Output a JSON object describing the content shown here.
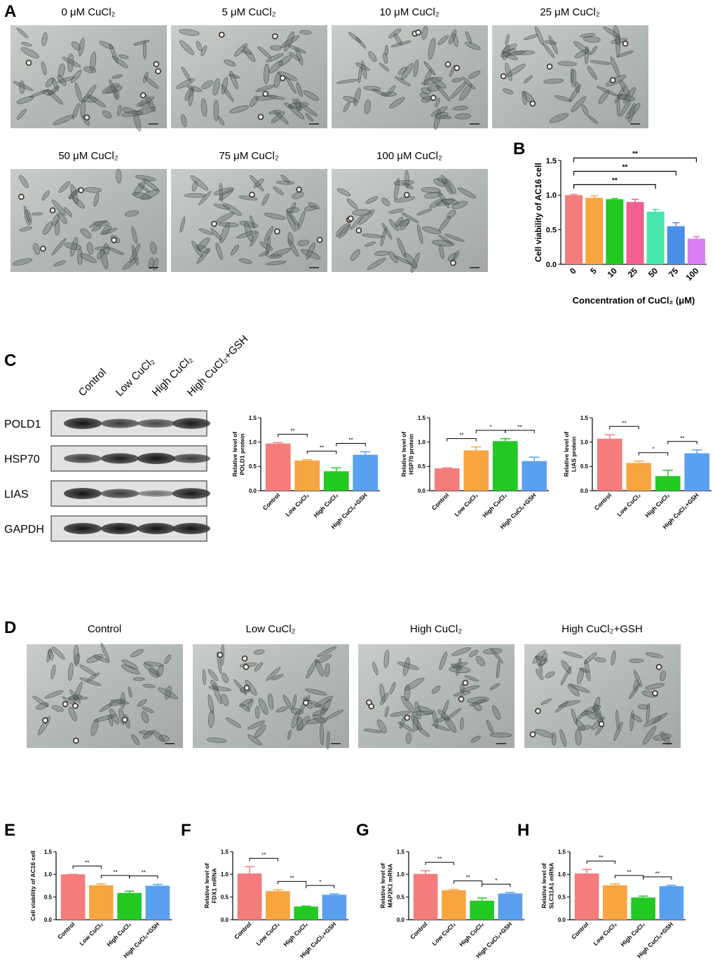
{
  "panels": [
    "A",
    "B",
    "C",
    "D",
    "E",
    "F",
    "G",
    "H"
  ],
  "figure_A": {
    "titles": [
      "0 μM CuCl₂",
      "5 μM CuCl₂",
      "10 μM CuCl₂",
      "25 μM CuCl₂",
      "50 μM CuCl₂",
      "75 μM CuCl₂",
      "100 μM CuCl₂"
    ]
  },
  "blot": {
    "lanes": [
      "Control",
      "Low CuCl₂",
      "High CuCl₂",
      "High CuCl₂+GSH"
    ],
    "proteins": [
      "POLD1",
      "HSP70",
      "LIAS",
      "GAPDH"
    ]
  },
  "figure_D": {
    "titles": [
      "Control",
      "Low CuCl₂",
      "High CuCl₂",
      "High CuCl₂+GSH"
    ]
  },
  "chart_data": [
    {
      "type": "bar",
      "ylabel": [
        "Cell viability of AC16 cell"
      ],
      "xlabel": "Concentration of CuCl₂ (μM)",
      "categories": [
        "0",
        "5",
        "10",
        "25",
        "50",
        "75",
        "100"
      ],
      "values": [
        1.0,
        0.96,
        0.94,
        0.9,
        0.76,
        0.55,
        0.37
      ],
      "errors": [
        0.01,
        0.03,
        0.01,
        0.04,
        0.03,
        0.05,
        0.03
      ],
      "colors": [
        "#f47c7c",
        "#f7a540",
        "#22c922",
        "#f0608f",
        "#48e6ad",
        "#4a8fe7",
        "#d77ef0"
      ],
      "ylim": [
        0,
        1.5
      ],
      "yticks": [
        {
          "value": 0,
          "label": "0.0"
        },
        {
          "value": 0.5,
          "label": "0.5"
        },
        {
          "value": 1.0,
          "label": "1.0"
        },
        {
          "value": 1.5,
          "label": "1.5"
        }
      ],
      "significance": [
        {
          "from": "0",
          "to": "50",
          "label": "**"
        },
        {
          "from": "0",
          "to": "75",
          "label": "**"
        },
        {
          "from": "0",
          "to": "100",
          "label": "**"
        }
      ]
    },
    {
      "type": "bar",
      "ylabel": [
        "Relative level of",
        "POLD1 protein"
      ],
      "categories": [
        "Control",
        "Low CuCl₂",
        "High CuCl₂",
        "High CuCl₂+GSH"
      ],
      "values": [
        0.97,
        0.62,
        0.4,
        0.74
      ],
      "errors": [
        0.02,
        0.02,
        0.07,
        0.06
      ],
      "colors": [
        "#f47c7c",
        "#f7a540",
        "#22c922",
        "#5aa0f0"
      ],
      "ylim": [
        0,
        1.5
      ],
      "yticks": [
        {
          "value": 0,
          "label": "0.0"
        },
        {
          "value": 0.5,
          "label": "0.5"
        },
        {
          "value": 1.0,
          "label": "1.0"
        },
        {
          "value": 1.5,
          "label": "1.5"
        }
      ],
      "significance": [
        {
          "from": "Control",
          "to": "Low CuCl₂",
          "label": "**"
        },
        {
          "from": "Low CuCl₂",
          "to": "High CuCl₂",
          "label": "**"
        },
        {
          "from": "High CuCl₂",
          "to": "High CuCl₂+GSH",
          "label": "**"
        }
      ]
    },
    {
      "type": "bar",
      "ylabel": [
        "Relative level of",
        "HSP70 protein"
      ],
      "categories": [
        "Control",
        "Low CuCl₂",
        "High CuCl₂",
        "High CuCl₂+GSH"
      ],
      "values": [
        0.46,
        0.83,
        1.02,
        0.61
      ],
      "errors": [
        0.01,
        0.07,
        0.05,
        0.08
      ],
      "colors": [
        "#f47c7c",
        "#f7a540",
        "#22c922",
        "#5aa0f0"
      ],
      "ylim": [
        0,
        1.5
      ],
      "yticks": [
        {
          "value": 0,
          "label": "0.0"
        },
        {
          "value": 0.5,
          "label": "0.5"
        },
        {
          "value": 1.0,
          "label": "1.0"
        },
        {
          "value": 1.5,
          "label": "1.5"
        }
      ],
      "significance": [
        {
          "from": "Control",
          "to": "Low CuCl₂",
          "label": "**"
        },
        {
          "from": "Low CuCl₂",
          "to": "High CuCl₂",
          "label": "*"
        },
        {
          "from": "High CuCl₂",
          "to": "High CuCl₂+GSH",
          "label": "**"
        }
      ]
    },
    {
      "type": "bar",
      "ylabel": [
        "Relative level of",
        "LIAS protein"
      ],
      "categories": [
        "Control",
        "Low CuCl₂",
        "High CuCl₂",
        "High CuCl₂+GSH"
      ],
      "values": [
        1.07,
        0.57,
        0.3,
        0.77
      ],
      "errors": [
        0.08,
        0.04,
        0.12,
        0.07
      ],
      "colors": [
        "#f47c7c",
        "#f7a540",
        "#22c922",
        "#5aa0f0"
      ],
      "ylim": [
        0,
        1.5
      ],
      "yticks": [
        {
          "value": 0,
          "label": "0.0"
        },
        {
          "value": 0.5,
          "label": "0.5"
        },
        {
          "value": 1.0,
          "label": "1.0"
        },
        {
          "value": 1.5,
          "label": "1.5"
        }
      ],
      "significance": [
        {
          "from": "Control",
          "to": "Low CuCl₂",
          "label": "**"
        },
        {
          "from": "Low CuCl₂",
          "to": "High CuCl₂",
          "label": "*"
        },
        {
          "from": "High CuCl₂",
          "to": "High CuCl₂+GSH",
          "label": "**"
        }
      ]
    },
    {
      "type": "bar",
      "ylabel": [
        "Cell viability of AC16 cell"
      ],
      "categories": [
        "Control",
        "Low CuCl₂",
        "High CuCl₂",
        "High CuCl₂+GSH"
      ],
      "values": [
        1.0,
        0.76,
        0.59,
        0.75
      ],
      "errors": [
        0.0,
        0.03,
        0.04,
        0.03
      ],
      "colors": [
        "#f47c7c",
        "#f7a540",
        "#22c922",
        "#5aa0f0"
      ],
      "ylim": [
        0,
        1.5
      ],
      "yticks": [
        {
          "value": 0,
          "label": "0.0"
        },
        {
          "value": 0.5,
          "label": "0.5"
        },
        {
          "value": 1.0,
          "label": "1.0"
        },
        {
          "value": 1.5,
          "label": "1.5"
        }
      ],
      "significance": [
        {
          "from": "Control",
          "to": "Low CuCl₂",
          "label": "**"
        },
        {
          "from": "Low CuCl₂",
          "to": "High CuCl₂",
          "label": "**"
        },
        {
          "from": "High CuCl₂",
          "to": "High CuCl₂+GSH",
          "label": "**"
        }
      ]
    },
    {
      "type": "bar",
      "ylabel": [
        "Relative level of",
        "FDX1 mRNA"
      ],
      "categories": [
        "Control",
        "Low CuCl₂",
        "High CuCl₂",
        "High CuCl₂+GSH"
      ],
      "values": [
        1.02,
        0.63,
        0.29,
        0.55
      ],
      "errors": [
        0.15,
        0.03,
        0.01,
        0.02
      ],
      "colors": [
        "#f47c7c",
        "#f7a540",
        "#22c922",
        "#5aa0f0"
      ],
      "ylim": [
        0,
        1.5
      ],
      "yticks": [
        {
          "value": 0,
          "label": "0.0"
        },
        {
          "value": 0.5,
          "label": "0.5"
        },
        {
          "value": 1.0,
          "label": "1.0"
        },
        {
          "value": 1.5,
          "label": "1.5"
        }
      ],
      "significance": [
        {
          "from": "Control",
          "to": "Low CuCl₂",
          "label": "**"
        },
        {
          "from": "Low CuCl₂",
          "to": "High CuCl₂",
          "label": "**"
        },
        {
          "from": "High CuCl₂",
          "to": "High CuCl₂+GSH",
          "label": "*"
        }
      ]
    },
    {
      "type": "bar",
      "ylabel": [
        "Relative level of",
        "MAP2K1 mRNA"
      ],
      "categories": [
        "Control",
        "Low CuCl₂",
        "High CuCl₂",
        "High CuCl₂+GSH"
      ],
      "values": [
        1.01,
        0.65,
        0.42,
        0.58
      ],
      "errors": [
        0.07,
        0.02,
        0.06,
        0.02
      ],
      "colors": [
        "#f47c7c",
        "#f7a540",
        "#22c922",
        "#5aa0f0"
      ],
      "ylim": [
        0,
        1.5
      ],
      "yticks": [
        {
          "value": 0,
          "label": "0.0"
        },
        {
          "value": 0.5,
          "label": "0.5"
        },
        {
          "value": 1.0,
          "label": "1.0"
        },
        {
          "value": 1.5,
          "label": "1.5"
        }
      ],
      "significance": [
        {
          "from": "Control",
          "to": "Low CuCl₂",
          "label": "**"
        },
        {
          "from": "Low CuCl₂",
          "to": "High CuCl₂",
          "label": "**"
        },
        {
          "from": "High CuCl₂",
          "to": "High CuCl₂+GSH",
          "label": "*"
        }
      ]
    },
    {
      "type": "bar",
      "ylabel": [
        "Relative level of",
        "SLC31A1 mRNA"
      ],
      "categories": [
        "Control",
        "Low CuCl₂",
        "High CuCl₂",
        "High CuCl₂+GSH"
      ],
      "values": [
        1.02,
        0.76,
        0.49,
        0.74
      ],
      "errors": [
        0.09,
        0.03,
        0.03,
        0.02
      ],
      "colors": [
        "#f47c7c",
        "#f7a540",
        "#22c922",
        "#5aa0f0"
      ],
      "ylim": [
        0,
        1.5
      ],
      "yticks": [
        {
          "value": 0,
          "label": "0.0"
        },
        {
          "value": 0.5,
          "label": "0.5"
        },
        {
          "value": 1.0,
          "label": "1.0"
        },
        {
          "value": 1.5,
          "label": "1.5"
        }
      ],
      "significance": [
        {
          "from": "Control",
          "to": "Low CuCl₂",
          "label": "**"
        },
        {
          "from": "Low CuCl₂",
          "to": "High CuCl₂",
          "label": "**"
        },
        {
          "from": "High CuCl₂",
          "to": "High CuCl₂+GSH",
          "label": "**"
        }
      ]
    }
  ]
}
